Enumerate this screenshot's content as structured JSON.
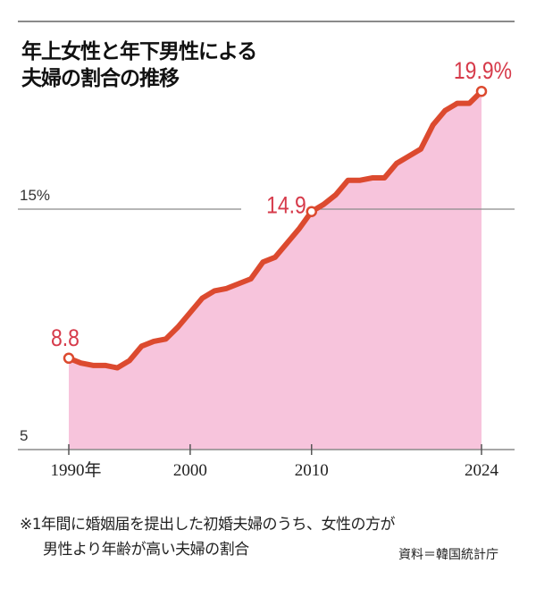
{
  "chart_data": {
    "type": "area",
    "title": "年上女性と年下男性による夫婦の割合の推移",
    "title_lines": [
      "年上女性と年下男性による",
      "夫婦の割合の推移"
    ],
    "xlabel": "",
    "ylabel": "",
    "ylim": [
      5,
      20.5
    ],
    "xlim": [
      1990,
      2024
    ],
    "y_ticks": [
      {
        "value": 5,
        "label": "5"
      },
      {
        "value": 15,
        "label": "15%"
      }
    ],
    "x_ticks": [
      {
        "value": 1990,
        "label": "1990年"
      },
      {
        "value": 2000,
        "label": "2000"
      },
      {
        "value": 2010,
        "label": "2010"
      },
      {
        "value": 2024,
        "label": "2024"
      }
    ],
    "x": [
      1990,
      1991,
      1992,
      1993,
      1994,
      1995,
      1996,
      1997,
      1998,
      1999,
      2000,
      2001,
      2002,
      2003,
      2004,
      2005,
      2006,
      2007,
      2008,
      2009,
      2010,
      2011,
      2012,
      2013,
      2014,
      2015,
      2016,
      2017,
      2018,
      2019,
      2020,
      2021,
      2022,
      2023,
      2024
    ],
    "values": [
      8.8,
      8.6,
      8.5,
      8.5,
      8.4,
      8.7,
      9.3,
      9.5,
      9.6,
      10.1,
      10.7,
      11.3,
      11.6,
      11.7,
      11.9,
      12.1,
      12.8,
      13.0,
      13.6,
      14.2,
      14.9,
      15.2,
      15.6,
      16.2,
      16.2,
      16.3,
      16.3,
      16.9,
      17.2,
      17.5,
      18.5,
      19.1,
      19.4,
      19.4,
      19.9
    ],
    "annotations": [
      {
        "x": 1990,
        "value": 8.8,
        "label": "8.8"
      },
      {
        "x": 2010,
        "value": 14.9,
        "label": "14.9"
      },
      {
        "x": 2024,
        "value": 19.9,
        "label": "19.9%"
      }
    ],
    "colors": {
      "line": "#dc4a2f",
      "fill": "#f7c4dc",
      "label": "#d63a4a",
      "grid": "#8a8a8a"
    }
  },
  "notes": {
    "line1": "※1年間に婚姻届を提出した初婚夫婦のうち、女性の方が",
    "line2": "男性より年齢が高い夫婦の割合",
    "source": "資料＝韓国統計庁"
  }
}
